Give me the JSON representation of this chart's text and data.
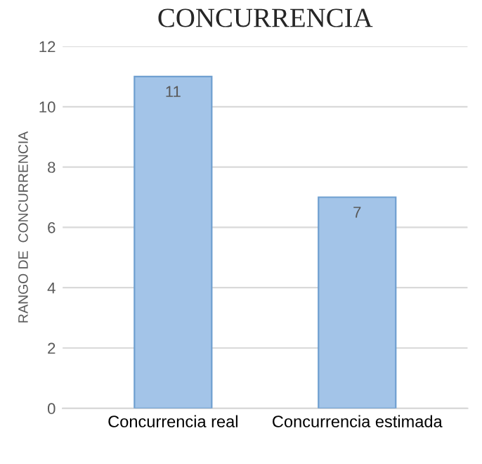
{
  "chart_data": {
    "type": "bar",
    "title": "CONCURRENCIA",
    "ylabel": "RANGO DE  CONCURRENCIA",
    "categories": [
      "Concurrencia real",
      "Concurrencia estimada"
    ],
    "values": [
      11,
      7
    ],
    "color": "#a3c4e8",
    "ylim": [
      0,
      12
    ],
    "yticks": [
      0,
      2,
      4,
      6,
      8,
      10,
      12
    ],
    "grid": "y",
    "data_labels": true
  }
}
